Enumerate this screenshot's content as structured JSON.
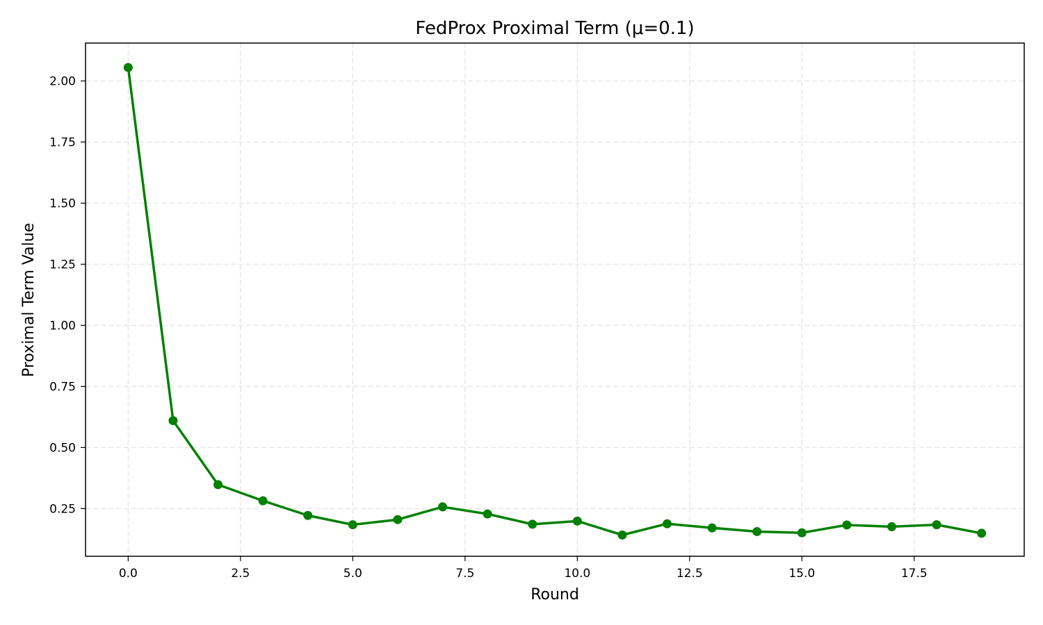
{
  "chart_data": {
    "type": "line",
    "title": "FedProx Proximal Term (μ=0.1)",
    "xlabel": "Round",
    "ylabel": "Proximal Term Value",
    "xlim": [
      -0.95,
      19.95
    ],
    "ylim": [
      0.055,
      2.155
    ],
    "x_ticks": [
      0.0,
      2.5,
      5.0,
      7.5,
      10.0,
      12.5,
      15.0,
      17.5
    ],
    "x_tick_labels": [
      "0.0",
      "2.5",
      "5.0",
      "7.5",
      "10.0",
      "12.5",
      "15.0",
      "17.5"
    ],
    "y_ticks": [
      0.25,
      0.5,
      0.75,
      1.0,
      1.25,
      1.5,
      1.75,
      2.0
    ],
    "y_tick_labels": [
      "0.25",
      "0.50",
      "0.75",
      "1.00",
      "1.25",
      "1.50",
      "1.75",
      "2.00"
    ],
    "grid": true,
    "legend": "none",
    "x": [
      0,
      1,
      2,
      3,
      4,
      5,
      6,
      7,
      8,
      9,
      10,
      11,
      12,
      13,
      14,
      15,
      16,
      17,
      18,
      19
    ],
    "series": [
      {
        "color": "#008000",
        "marker": "circle",
        "values": [
          2.055,
          0.61,
          0.348,
          0.282,
          0.222,
          0.184,
          0.205,
          0.257,
          0.228,
          0.186,
          0.199,
          0.142,
          0.188,
          0.171,
          0.156,
          0.151,
          0.183,
          0.176,
          0.184,
          0.149
        ]
      }
    ]
  }
}
